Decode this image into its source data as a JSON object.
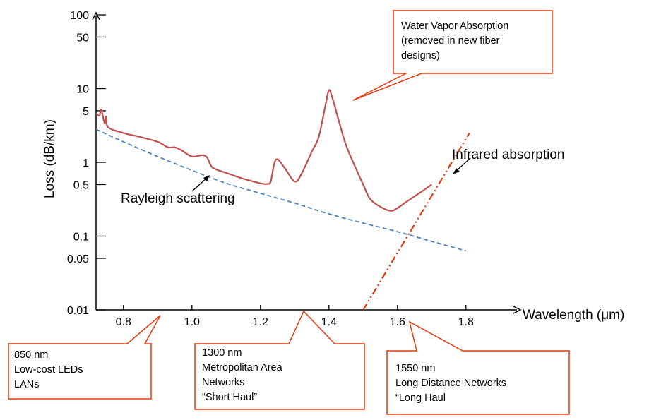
{
  "chart_data": {
    "type": "line",
    "xlabel": "Wavelength (μm)",
    "ylabel": "Loss (dB/km)",
    "y_scale": "log",
    "xlim": [
      0.72,
      1.82
    ],
    "ylim": [
      0.01,
      100
    ],
    "x_ticks": [
      "0.8",
      "1.0",
      "1.2",
      "1.4",
      "1.6",
      "1.8"
    ],
    "y_ticks": [
      "100",
      "50",
      "10",
      "5",
      "1",
      "0.5",
      "0.1",
      "0.05",
      "0.01"
    ],
    "series": [
      {
        "line_style": "solid",
        "color": "#c0504d",
        "points": [
          [
            0.72,
            4.6
          ],
          [
            0.73,
            4.3
          ],
          [
            0.735,
            5.2
          ],
          [
            0.745,
            3.4
          ],
          [
            0.75,
            4.2
          ],
          [
            0.755,
            3.0
          ],
          [
            0.8,
            2.5
          ],
          [
            0.85,
            2.2
          ],
          [
            0.9,
            1.9
          ],
          [
            0.93,
            1.6
          ],
          [
            0.95,
            1.6
          ],
          [
            0.97,
            1.45
          ],
          [
            1.0,
            1.2
          ],
          [
            1.03,
            1.25
          ],
          [
            1.045,
            1.15
          ],
          [
            1.06,
            0.85
          ],
          [
            1.1,
            0.72
          ],
          [
            1.15,
            0.6
          ],
          [
            1.2,
            0.52
          ],
          [
            1.22,
            0.51
          ],
          [
            1.23,
            0.55
          ],
          [
            1.24,
            0.95
          ],
          [
            1.25,
            1.1
          ],
          [
            1.27,
            0.85
          ],
          [
            1.3,
            0.55
          ],
          [
            1.32,
            0.7
          ],
          [
            1.35,
            1.4
          ],
          [
            1.37,
            2.2
          ],
          [
            1.39,
            6.0
          ],
          [
            1.4,
            9.5
          ],
          [
            1.41,
            7.5
          ],
          [
            1.43,
            3.5
          ],
          [
            1.45,
            1.7
          ],
          [
            1.48,
            0.8
          ],
          [
            1.5,
            0.5
          ],
          [
            1.52,
            0.32
          ],
          [
            1.55,
            0.25
          ],
          [
            1.58,
            0.22
          ],
          [
            1.6,
            0.24
          ],
          [
            1.63,
            0.3
          ],
          [
            1.67,
            0.4
          ],
          [
            1.7,
            0.5
          ]
        ]
      },
      {
        "name": "Rayleigh scattering",
        "line_style": "dashed",
        "color": "#4f81bd",
        "points": [
          [
            0.72,
            2.8
          ],
          [
            0.8,
            1.9
          ],
          [
            0.9,
            1.2
          ],
          [
            1.0,
            0.78
          ],
          [
            1.1,
            0.52
          ],
          [
            1.2,
            0.38
          ],
          [
            1.3,
            0.28
          ],
          [
            1.4,
            0.2
          ],
          [
            1.5,
            0.15
          ],
          [
            1.6,
            0.115
          ],
          [
            1.7,
            0.085
          ],
          [
            1.8,
            0.063
          ]
        ]
      },
      {
        "name": "Infrared absorption",
        "line_style": "dash-dot",
        "color": "#e8380d",
        "points": [
          [
            1.5,
            0.01
          ],
          [
            1.81,
            2.5
          ]
        ]
      }
    ],
    "annotations": {
      "water_vapor": [
        "Water Vapor Absorption",
        "(removed in new fiber",
        "designs)"
      ],
      "rayleigh": "Rayleigh scattering",
      "infrared": "Infrared absorption",
      "nm850": [
        "850 nm",
        "Low-cost LEDs",
        "LANs"
      ],
      "nm1300": [
        "1300 nm",
        "Metropolitan Area",
        "Networks",
        "“Short Haul”"
      ],
      "nm1550": [
        "1550 nm",
        "Long Distance Networks",
        "“Long Haul"
      ]
    },
    "grid": false
  },
  "colors": {
    "axis": "#000000",
    "callout_border": "#e8380d",
    "loss_curve": "#c0504d",
    "rayleigh": "#4f81bd",
    "infrared": "#e8380d"
  }
}
